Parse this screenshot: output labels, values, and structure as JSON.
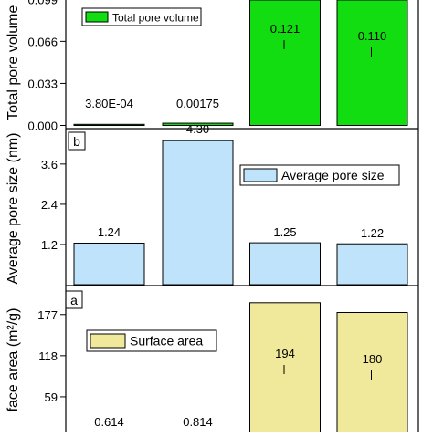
{
  "chart_data": [
    {
      "type": "bar",
      "panel": "c",
      "ylabel": "Total pore volume",
      "ylim": [
        0,
        0.12
      ],
      "yticks": [
        "0.000",
        "0.033",
        "0.066",
        "0.099"
      ],
      "yticks_values": [
        0,
        0.033,
        0.066,
        0.099
      ],
      "values": [
        0.00038,
        0.00175,
        0.121,
        0.11
      ],
      "labels": [
        "3.80E-04",
        "0.00175",
        "0.121",
        "0.110"
      ],
      "legend": "Total pore volume",
      "color": "#11dd11"
    },
    {
      "type": "bar",
      "panel": "b",
      "label": "b",
      "ylabel": "Average pore size (nm)",
      "ylim": [
        0,
        4.55
      ],
      "yticks": [
        "1.2",
        "2.4",
        "3.6"
      ],
      "yticks_values": [
        1.2,
        2.4,
        3.6
      ],
      "values": [
        1.24,
        4.3,
        1.25,
        1.22
      ],
      "labels": [
        "1.24",
        "4.30",
        "1.25",
        "1.22"
      ],
      "legend": "Average pore size",
      "color": "#bfe3fb"
    },
    {
      "type": "bar",
      "panel": "a",
      "label": "a",
      "ylabel": "face area (m²/g)",
      "ylim": [
        0,
        216
      ],
      "yticks": [
        "59",
        "118",
        "177"
      ],
      "yticks_values": [
        59,
        118,
        177
      ],
      "values": [
        0.614,
        0.814,
        194,
        180
      ],
      "labels": [
        "0.614",
        "0.814",
        "194",
        "180"
      ],
      "legend": "Surface area",
      "color": "#f0e89a"
    }
  ]
}
